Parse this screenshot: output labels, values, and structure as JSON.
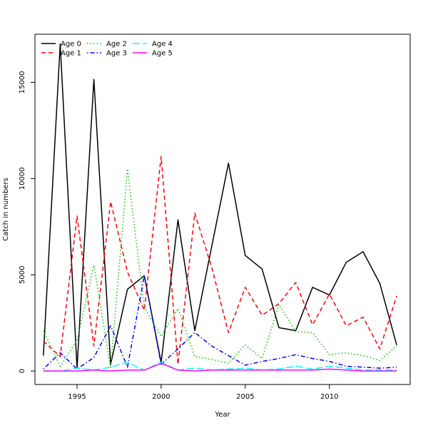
{
  "chart_data": {
    "type": "line",
    "title": "",
    "xlabel": "Year",
    "ylabel": "Catch in numbers",
    "xlim": [
      1992.5,
      2014.8
    ],
    "ylim": [
      -700,
      17500
    ],
    "xticks": [
      1995,
      2000,
      2005,
      2010
    ],
    "yticks": [
      0,
      5000,
      10000,
      15000
    ],
    "grid": false,
    "legend_position": "top-left",
    "x": [
      1993,
      1994,
      1995,
      1996,
      1997,
      1998,
      1999,
      2000,
      2001,
      2002,
      2003,
      2004,
      2005,
      2006,
      2007,
      2008,
      2009,
      2010,
      2011,
      2012,
      2013,
      2014
    ],
    "series": [
      {
        "name": "Age 0",
        "color": "#000000",
        "dash": "solid",
        "values": [
          800,
          17000,
          150,
          15150,
          350,
          4250,
          4950,
          450,
          7850,
          2100,
          6450,
          10800,
          6000,
          5300,
          2250,
          2100,
          4350,
          3950,
          5650,
          6200,
          4550,
          1350
        ]
      },
      {
        "name": "Age 1",
        "color": "#ff0000",
        "dash": "dashed",
        "values": [
          1550,
          750,
          8050,
          1300,
          8800,
          5150,
          3150,
          11150,
          350,
          8200,
          5400,
          2000,
          4350,
          2900,
          3500,
          4600,
          2400,
          4000,
          2350,
          2800,
          1150,
          3900
        ]
      },
      {
        "name": "Age 2",
        "color": "#00cd00",
        "dash": "dotted",
        "values": [
          2100,
          250,
          1600,
          5500,
          150,
          10500,
          3300,
          1800,
          3250,
          750,
          600,
          400,
          1350,
          650,
          3450,
          2050,
          2000,
          850,
          950,
          800,
          550,
          1300
        ]
      },
      {
        "name": "Age 3",
        "color": "#0000ff",
        "dash": "dotdash",
        "values": [
          100,
          950,
          100,
          700,
          2350,
          200,
          4950,
          350,
          1150,
          2000,
          1300,
          800,
          300,
          500,
          650,
          850,
          650,
          500,
          250,
          200,
          150,
          200
        ]
      },
      {
        "name": "Age 4",
        "color": "#00ffff",
        "dash": "longdash",
        "values": [
          0,
          0,
          150,
          50,
          200,
          450,
          50,
          450,
          50,
          150,
          50,
          100,
          150,
          50,
          100,
          250,
          100,
          250,
          150,
          50,
          50,
          50
        ]
      },
      {
        "name": "Age 5",
        "color": "#ff00ff",
        "dash": "solid",
        "values": [
          0,
          0,
          0,
          50,
          0,
          50,
          50,
          400,
          50,
          0,
          50,
          50,
          50,
          50,
          50,
          50,
          50,
          100,
          50,
          0,
          0,
          0
        ]
      }
    ]
  }
}
